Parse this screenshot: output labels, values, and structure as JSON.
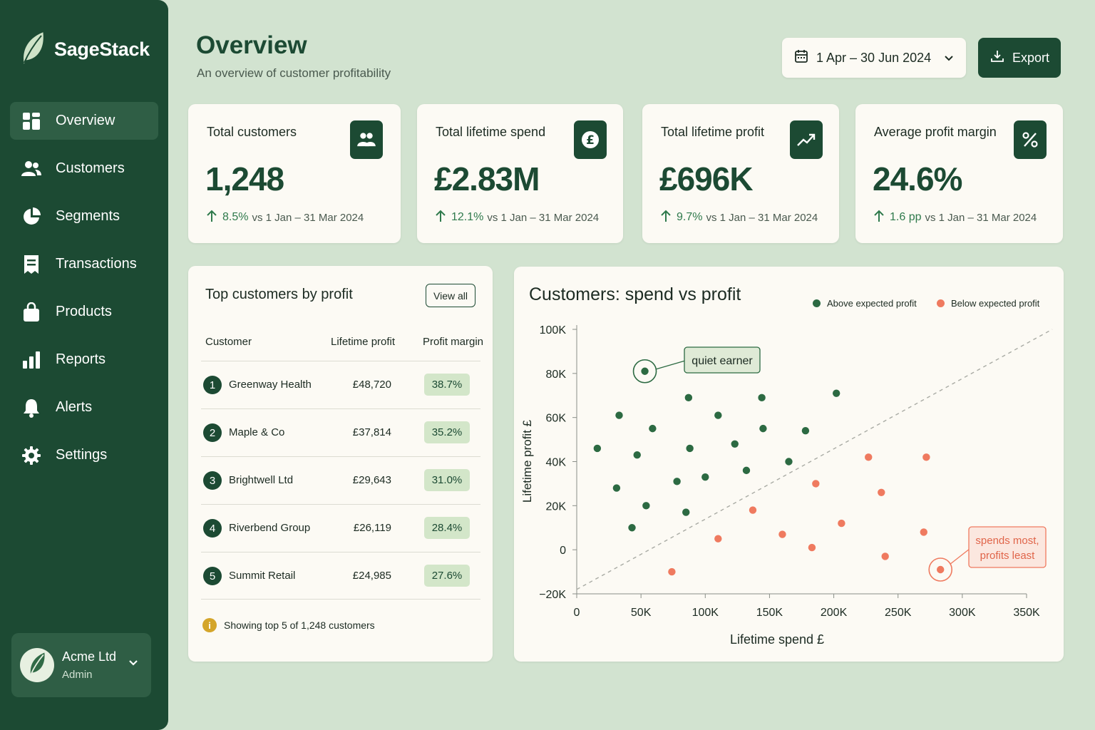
{
  "app": {
    "name": "SageStack",
    "logo_icon": "leaf-icon"
  },
  "sidebar": {
    "items": [
      {
        "label": "Overview",
        "icon": "grid-icon",
        "active": true
      },
      {
        "label": "Customers",
        "icon": "users-icon"
      },
      {
        "label": "Segments",
        "icon": "pie-icon"
      },
      {
        "label": "Transactions",
        "icon": "receipt-icon"
      },
      {
        "label": "Products",
        "icon": "bag-icon"
      },
      {
        "label": "Reports",
        "icon": "bar-chart-icon"
      },
      {
        "label": "Alerts",
        "icon": "bell-icon"
      },
      {
        "label": "Settings",
        "icon": "gear-icon"
      }
    ],
    "account": {
      "name": "Acme Ltd",
      "role": "Admin"
    }
  },
  "header": {
    "title": "Overview",
    "subtitle": "An overview of customer profitability",
    "date_range": "1 Apr – 30 Jun 2024",
    "export_label": "Export"
  },
  "kpis": [
    {
      "label": "Total customers",
      "value": "1,248",
      "delta": "8.5%",
      "comparison": "vs 1 Jan – 31 Mar 2024",
      "icon": "users-icon"
    },
    {
      "label": "Total lifetime spend",
      "value": "£2.83M",
      "delta": "12.1%",
      "comparison": "vs 1 Jan – 31 Mar 2024",
      "icon": "pound-icon"
    },
    {
      "label": "Total lifetime profit",
      "value": "£696K",
      "delta": "9.7%",
      "comparison": "vs 1 Jan – 31 Mar 2024",
      "icon": "trend-up-icon"
    },
    {
      "label": "Average profit margin",
      "value": "24.6%",
      "delta": "1.6 pp",
      "comparison": "vs 1 Jan – 31 Mar 2024",
      "icon": "percent-icon"
    }
  ],
  "top_customers": {
    "title": "Top customers by profit",
    "view_all": "View all",
    "columns": [
      "Customer",
      "Lifetime profit",
      "Profit margin"
    ],
    "rows": [
      {
        "rank": "1",
        "name": "Greenway Health",
        "profit": "£48,720",
        "margin": "38.7%"
      },
      {
        "rank": "2",
        "name": "Maple & Co",
        "profit": "£37,814",
        "margin": "35.2%"
      },
      {
        "rank": "3",
        "name": "Brightwell Ltd",
        "profit": "£29,643",
        "margin": "31.0%"
      },
      {
        "rank": "4",
        "name": "Riverbend Group",
        "profit": "£26,119",
        "margin": "28.4%"
      },
      {
        "rank": "5",
        "name": "Summit Retail",
        "profit": "£24,985",
        "margin": "27.6%"
      }
    ],
    "footnote": "Showing top 5 of 1,248 customers"
  },
  "colors": {
    "brand": "#1c4a33",
    "above": "#2c6a42",
    "below": "#ef7a5f",
    "page_bg": "#d2e3d0",
    "card_bg": "#fcfaf4"
  },
  "chart_data": {
    "type": "scatter",
    "title": "Customers: spend vs profit",
    "xlabel": "Lifetime spend £",
    "ylabel": "Lifetime profit £",
    "xlim": [
      0,
      350000
    ],
    "ylim": [
      -20000,
      100000
    ],
    "x_ticks": [
      "0",
      "50K",
      "100K",
      "150K",
      "200K",
      "250K",
      "300K",
      "350K"
    ],
    "y_ticks": [
      "−20K",
      "0",
      "20K",
      "40K",
      "60K",
      "80K",
      "100K"
    ],
    "legend_position": "top-right",
    "grid": false,
    "reference_line": {
      "style": "dashed",
      "from": [
        0,
        -18000
      ],
      "to": [
        370000,
        100000
      ]
    },
    "series": [
      {
        "name": "Above expected profit",
        "color": "#2c6a42",
        "points": [
          [
            53000,
            81000
          ],
          [
            16000,
            46000
          ],
          [
            33000,
            61000
          ],
          [
            59000,
            55000
          ],
          [
            47000,
            43000
          ],
          [
            31000,
            28000
          ],
          [
            54000,
            20000
          ],
          [
            43000,
            10000
          ],
          [
            87000,
            69000
          ],
          [
            110000,
            61000
          ],
          [
            88000,
            46000
          ],
          [
            123000,
            48000
          ],
          [
            78000,
            31000
          ],
          [
            100000,
            33000
          ],
          [
            85000,
            17000
          ],
          [
            144000,
            69000
          ],
          [
            145000,
            55000
          ],
          [
            132000,
            36000
          ],
          [
            165000,
            40000
          ],
          [
            178000,
            54000
          ],
          [
            202000,
            71000
          ]
        ]
      },
      {
        "name": "Below expected profit",
        "color": "#ef7a5f",
        "points": [
          [
            74000,
            -10000
          ],
          [
            110000,
            5000
          ],
          [
            137000,
            18000
          ],
          [
            160000,
            7000
          ],
          [
            186000,
            30000
          ],
          [
            183000,
            1000
          ],
          [
            206000,
            12000
          ],
          [
            227000,
            42000
          ],
          [
            237000,
            26000
          ],
          [
            240000,
            -3000
          ],
          [
            272000,
            42000
          ],
          [
            270000,
            8000
          ],
          [
            283000,
            -9000
          ]
        ]
      }
    ],
    "annotations": [
      {
        "text": "quiet earner",
        "point": [
          53000,
          81000
        ],
        "color": "#2c6a42"
      },
      {
        "text": "spends most, profits least",
        "lines": [
          "spends most,",
          "profits least"
        ],
        "point": [
          283000,
          -9000
        ],
        "color": "#ef7a5f"
      }
    ]
  }
}
